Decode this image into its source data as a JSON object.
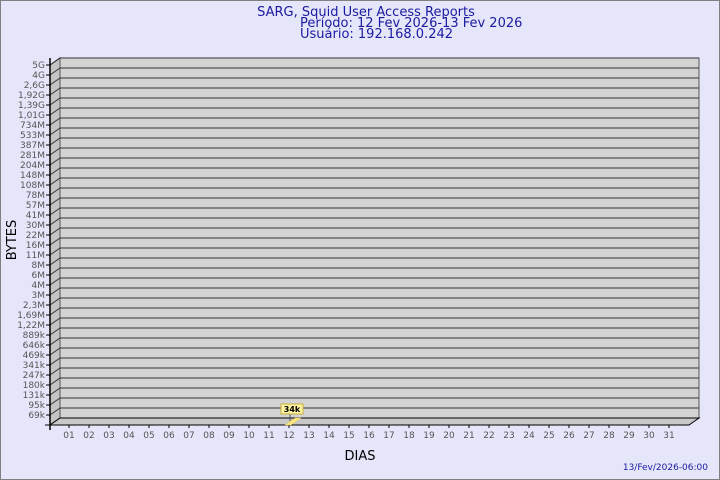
{
  "chart_data": {
    "type": "bar",
    "title": "SARG, Squid User Access Reports",
    "subtitle_period": "Período: 12 Fev 2026-13 Fev 2026",
    "subtitle_user": "Usuário: 192.168.0.242",
    "xlabel": "DIAS",
    "ylabel": "BYTES",
    "y_scale": "log",
    "y_tick_labels": [
      "5G",
      "4G",
      "2,6G",
      "1,92G",
      "1,39G",
      "1,01G",
      "734M",
      "533M",
      "387M",
      "281M",
      "204M",
      "148M",
      "108M",
      "78M",
      "57M",
      "41M",
      "30M",
      "22M",
      "16M",
      "11M",
      "8M",
      "6M",
      "4M",
      "3M",
      "2,3M",
      "1,69M",
      "1,22M",
      "889k",
      "646k",
      "469k",
      "341k",
      "247k",
      "180k",
      "131k",
      "95k",
      "69k"
    ],
    "categories": [
      "01",
      "02",
      "03",
      "04",
      "05",
      "06",
      "07",
      "08",
      "09",
      "10",
      "11",
      "12",
      "13",
      "14",
      "15",
      "16",
      "17",
      "18",
      "19",
      "20",
      "21",
      "22",
      "23",
      "24",
      "25",
      "26",
      "27",
      "28",
      "29",
      "30",
      "31"
    ],
    "series": [
      {
        "points": [
          {
            "day": "12",
            "value": 34000,
            "label": "34k"
          }
        ]
      }
    ],
    "grid": true,
    "colors": {
      "bar": "#ffe680",
      "wall": "#d3d3d3",
      "title": "#1a1aa0",
      "background": "#e6e6fa"
    }
  },
  "footer": {
    "timestamp": "13/Fev/2026-06:00"
  }
}
